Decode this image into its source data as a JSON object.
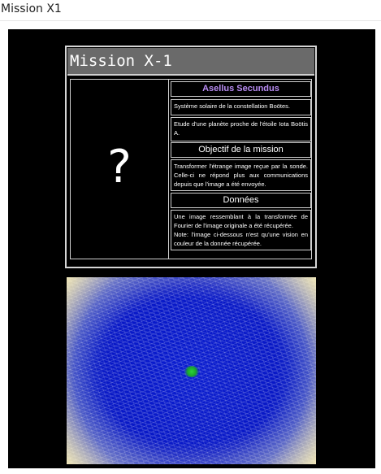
{
  "window": {
    "title": "Mission X1"
  },
  "card": {
    "header": "Mission X-1",
    "question_mark": "?",
    "target_name": "Asellus Secundus",
    "system_line": "Système solaire de la constellation Boötes.",
    "study_line": "Etude d'une planète proche de l'étoile Iota Boötis A.",
    "objective_title": "Objectif de la mission",
    "objective_text": "Transformer l'étrange image reçue par la sonde. Celle-ci ne répond plus aux communications depuis que l'image a été envoyée.",
    "data_title": "Données",
    "data_text": "Une image ressemblant à la transformée de Fourier de l'image originale a été récupérée.\nNote: l'image ci-dessous n'est qu'une vision en couleur de la donnée récupérée."
  },
  "colors": {
    "header_bg": "#6a6a6a",
    "accent_purple": "#b88cf2",
    "stage_bg": "#000000",
    "image_blue": "#0818c6"
  }
}
